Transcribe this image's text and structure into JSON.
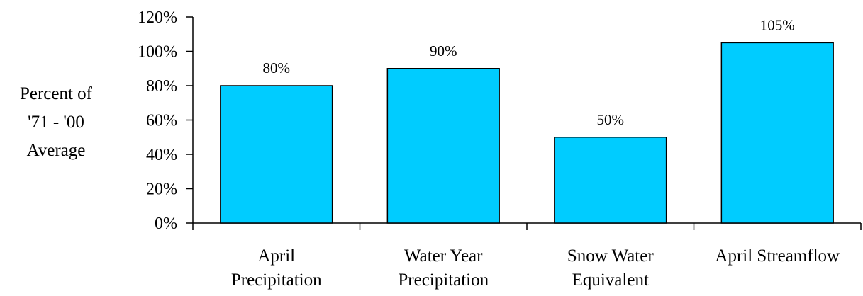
{
  "chart_data": {
    "type": "bar",
    "title": "",
    "ylabel_lines": [
      "Percent of",
      "'71 - '00",
      "Average"
    ],
    "categories": [
      [
        "April",
        "Precipitation"
      ],
      [
        "Water Year",
        "Precipitation"
      ],
      [
        "Snow Water",
        "Equivalent"
      ],
      [
        "April Streamflow"
      ]
    ],
    "values": [
      80,
      90,
      50,
      105
    ],
    "data_labels": [
      "80%",
      "90%",
      "50%",
      "105%"
    ],
    "ylim": [
      0,
      120
    ],
    "yticks": [
      0,
      20,
      40,
      60,
      80,
      100,
      120
    ],
    "ytick_labels": [
      "0%",
      "20%",
      "40%",
      "60%",
      "80%",
      "100%",
      "120%"
    ],
    "grid": false,
    "legend": "none",
    "colors": {
      "bar": "#00CCFF",
      "bar_edge": "#000000",
      "axis": "#000000"
    }
  }
}
